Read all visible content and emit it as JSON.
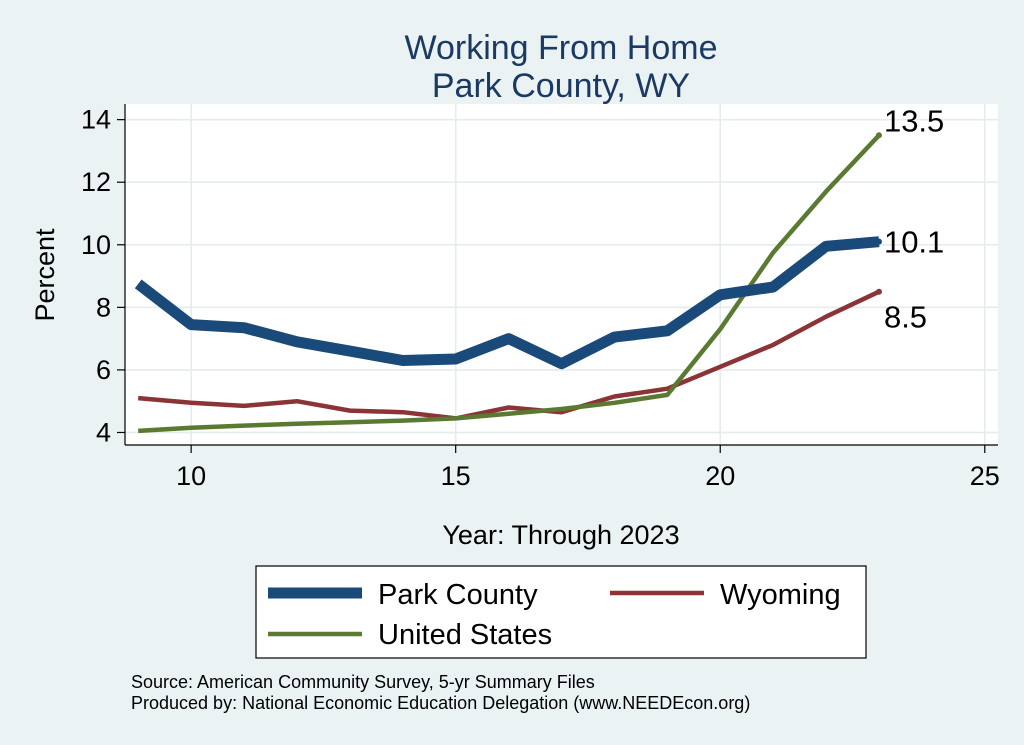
{
  "chart_data": {
    "type": "line",
    "title": [
      "Working From Home",
      "Park County, WY"
    ],
    "xlabel": "Year: Through 2023",
    "ylabel": "Percent",
    "xlim": [
      8.75,
      25.25
    ],
    "ylim": [
      3.6,
      14.5
    ],
    "xticks": [
      10,
      15,
      20,
      25
    ],
    "yticks": [
      4,
      6,
      8,
      10,
      12,
      14
    ],
    "grid": true,
    "legend_position": "bottom",
    "x": [
      9,
      10,
      11,
      12,
      13,
      14,
      15,
      16,
      17,
      18,
      19,
      20,
      21,
      22,
      23
    ],
    "series": [
      {
        "name": "Park County",
        "color": "#1a4a7a",
        "line_width": 11,
        "values": [
          8.75,
          7.45,
          7.35,
          6.9,
          6.6,
          6.3,
          6.35,
          7.0,
          6.2,
          7.05,
          7.25,
          8.4,
          8.65,
          9.95,
          10.1
        ],
        "end_label": "10.1"
      },
      {
        "name": "Wyoming",
        "color": "#8c3336",
        "line_width": 4.5,
        "values": [
          5.1,
          4.95,
          4.85,
          5.0,
          4.7,
          4.65,
          4.45,
          4.8,
          4.65,
          5.15,
          5.4,
          6.1,
          6.8,
          7.7,
          8.5
        ],
        "end_label": "8.5"
      },
      {
        "name": "United States",
        "color": "#5a7a32",
        "line_width": 4.5,
        "values": [
          4.05,
          4.15,
          4.22,
          4.28,
          4.33,
          4.38,
          4.45,
          4.6,
          4.75,
          4.95,
          5.2,
          7.3,
          9.75,
          11.7,
          13.5
        ],
        "end_label": "13.5"
      }
    ],
    "notes": [
      "Source: American Community Survey, 5-yr Summary Files",
      "Produced by: National Economic Education Delegation (www.NEEDEcon.org)"
    ]
  }
}
